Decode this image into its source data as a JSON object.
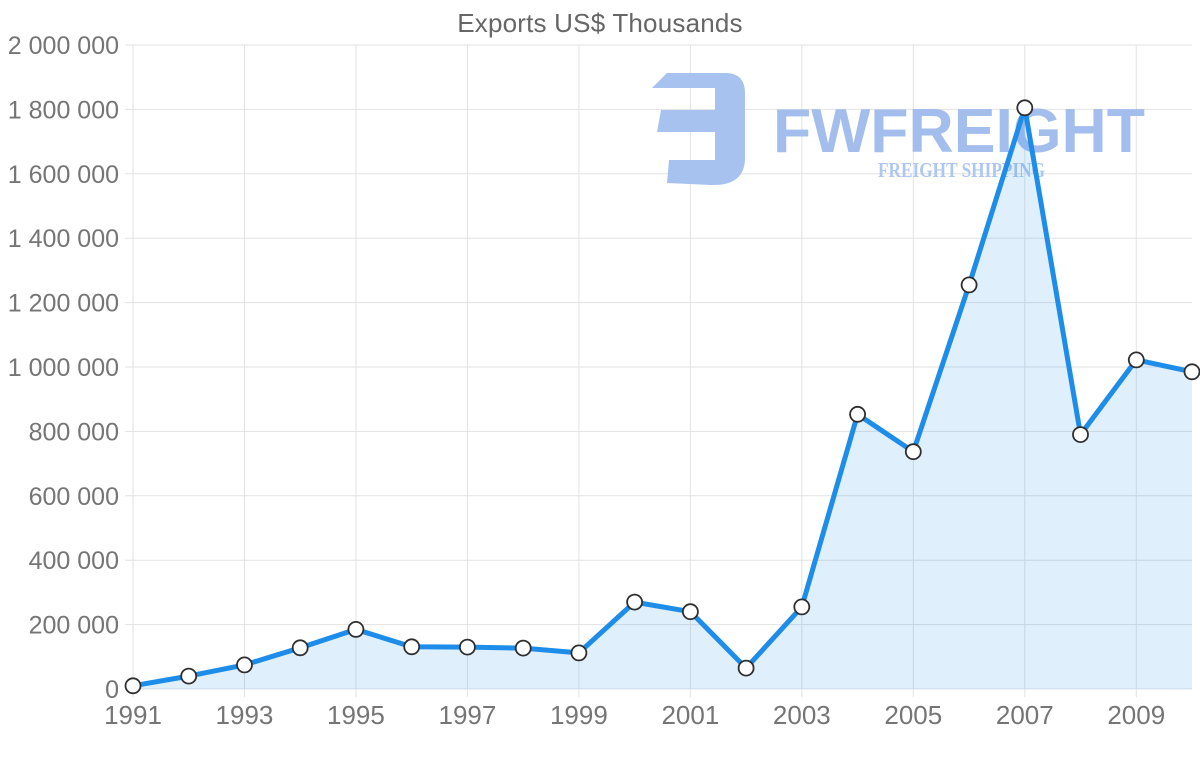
{
  "title": "Exports US$ Thousands",
  "watermark": {
    "name": "FWFREIGHT",
    "tagline": "FREIGHT SHIPPING",
    "icon": "fwfreight-logo-icon",
    "name_color": "#a3bdec",
    "tagline_color": "#aec7f2",
    "icon_color": "#a8c2ef"
  },
  "chart_data": {
    "type": "area",
    "title": "Exports US$ Thousands",
    "x": [
      1991,
      1992,
      1993,
      1994,
      1995,
      1996,
      1997,
      1998,
      1999,
      2000,
      2001,
      2002,
      2003,
      2004,
      2005,
      2006,
      2007,
      2008,
      2009,
      2010
    ],
    "series": [
      {
        "name": "Exports US$ Thousands",
        "values": [
          10000,
          40000,
          75000,
          128000,
          185000,
          131000,
          130000,
          127000,
          112000,
          270000,
          240000,
          65000,
          255000,
          853000,
          737000,
          1255000,
          1805000,
          790000,
          1022000,
          985000
        ]
      }
    ],
    "xlabel": "",
    "ylabel": "",
    "ylim": [
      0,
      2000000
    ],
    "y_tick_step": 200000,
    "y_tick_labels": [
      "0",
      "200 000",
      "400 000",
      "600 000",
      "800 000",
      "1 000 000",
      "1 200 000",
      "1 400 000",
      "1 600 000",
      "1 800 000",
      "2 000 000"
    ],
    "x_tick_labels": [
      "1991",
      "1993",
      "1995",
      "1997",
      "1999",
      "2001",
      "2003",
      "2005",
      "2007",
      "2009"
    ],
    "grid": true,
    "legend": "none",
    "line_color": "#1e8de9",
    "fill_color": "rgba(30,141,233,0.14)",
    "marker_fill": "#ffffff",
    "marker_stroke": "#2f2f2f",
    "gridline_color": "#e2e2e2",
    "axis_label_color": "#757575",
    "title_color": "#666666"
  }
}
